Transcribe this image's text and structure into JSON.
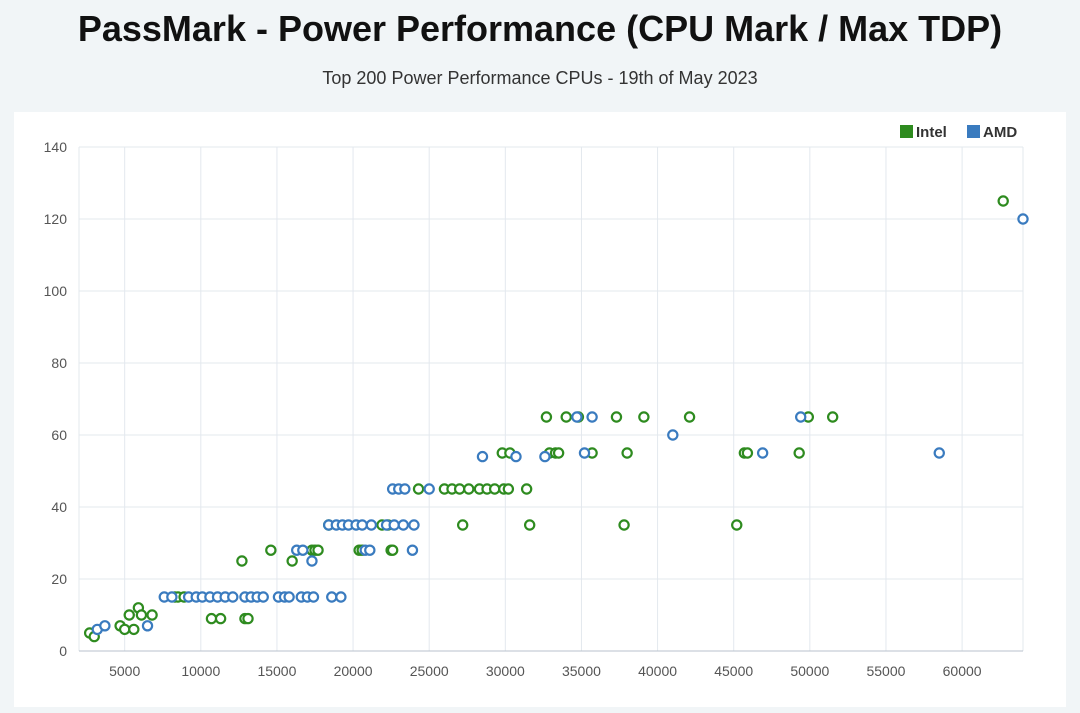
{
  "header": {
    "title": "PassMark - Power Performance (CPU Mark / Max TDP)",
    "subtitle": "Top 200 Power Performance CPUs - 19th of May 2023"
  },
  "colors": {
    "intel": "#2e8b1f",
    "amd": "#3a7bbf",
    "grid": "#e3e8ee"
  },
  "chart_data": {
    "type": "scatter",
    "title": "PassMark - Power Performance (CPU Mark / Max TDP)",
    "subtitle": "Top 200 Power Performance CPUs - 19th of May 2023",
    "xlabel": "",
    "ylabel": "",
    "xlim": [
      2000,
      64000
    ],
    "ylim": [
      0,
      140
    ],
    "x_ticks": [
      5000,
      10000,
      15000,
      20000,
      25000,
      30000,
      35000,
      40000,
      45000,
      50000,
      55000,
      60000
    ],
    "y_ticks": [
      0,
      20,
      40,
      60,
      80,
      100,
      120,
      140
    ],
    "grid": true,
    "legend": "top-right",
    "series": [
      {
        "name": "Intel",
        "color": "#2e8b1f",
        "points": [
          [
            2700,
            5
          ],
          [
            3000,
            4
          ],
          [
            4700,
            7
          ],
          [
            5000,
            6
          ],
          [
            5300,
            10
          ],
          [
            5600,
            6
          ],
          [
            5900,
            12
          ],
          [
            6100,
            10
          ],
          [
            6800,
            10
          ],
          [
            8300,
            15
          ],
          [
            8500,
            15
          ],
          [
            8900,
            15
          ],
          [
            10700,
            9
          ],
          [
            11300,
            9
          ],
          [
            12700,
            25
          ],
          [
            12900,
            9
          ],
          [
            13100,
            9
          ],
          [
            14600,
            28
          ],
          [
            16000,
            25
          ],
          [
            17300,
            28
          ],
          [
            17500,
            28
          ],
          [
            17700,
            28
          ],
          [
            18400,
            35
          ],
          [
            20400,
            28
          ],
          [
            20600,
            28
          ],
          [
            21900,
            35
          ],
          [
            22300,
            35
          ],
          [
            22500,
            28
          ],
          [
            22600,
            28
          ],
          [
            24300,
            45
          ],
          [
            26000,
            45
          ],
          [
            26500,
            45
          ],
          [
            27000,
            45
          ],
          [
            27200,
            35
          ],
          [
            27600,
            45
          ],
          [
            28300,
            45
          ],
          [
            28800,
            45
          ],
          [
            29300,
            45
          ],
          [
            29800,
            55
          ],
          [
            29900,
            45
          ],
          [
            30200,
            45
          ],
          [
            30300,
            55
          ],
          [
            31400,
            45
          ],
          [
            31600,
            35
          ],
          [
            32700,
            65
          ],
          [
            32900,
            55
          ],
          [
            33300,
            55
          ],
          [
            33500,
            55
          ],
          [
            34000,
            65
          ],
          [
            34800,
            65
          ],
          [
            35700,
            55
          ],
          [
            37300,
            65
          ],
          [
            37800,
            35
          ],
          [
            38000,
            55
          ],
          [
            39100,
            65
          ],
          [
            42100,
            65
          ],
          [
            45200,
            35
          ],
          [
            45700,
            55
          ],
          [
            45900,
            55
          ],
          [
            49300,
            55
          ],
          [
            49900,
            65
          ],
          [
            51500,
            65
          ],
          [
            62700,
            125
          ]
        ]
      },
      {
        "name": "AMD",
        "color": "#3a7bbf",
        "points": [
          [
            3200,
            6
          ],
          [
            3700,
            7
          ],
          [
            6500,
            7
          ],
          [
            7600,
            15
          ],
          [
            8100,
            15
          ],
          [
            9200,
            15
          ],
          [
            9700,
            15
          ],
          [
            10100,
            15
          ],
          [
            10600,
            15
          ],
          [
            11100,
            15
          ],
          [
            11600,
            15
          ],
          [
            12100,
            15
          ],
          [
            12900,
            15
          ],
          [
            13300,
            15
          ],
          [
            13700,
            15
          ],
          [
            14100,
            15
          ],
          [
            15100,
            15
          ],
          [
            15500,
            15
          ],
          [
            15800,
            15
          ],
          [
            16300,
            28
          ],
          [
            16600,
            15
          ],
          [
            16700,
            28
          ],
          [
            17000,
            15
          ],
          [
            17300,
            25
          ],
          [
            17400,
            15
          ],
          [
            18400,
            35
          ],
          [
            18600,
            15
          ],
          [
            18900,
            35
          ],
          [
            19200,
            15
          ],
          [
            19300,
            35
          ],
          [
            19700,
            35
          ],
          [
            20200,
            35
          ],
          [
            20600,
            35
          ],
          [
            20800,
            28
          ],
          [
            21100,
            28
          ],
          [
            21200,
            35
          ],
          [
            22200,
            35
          ],
          [
            22600,
            45
          ],
          [
            22700,
            35
          ],
          [
            23000,
            45
          ],
          [
            23300,
            35
          ],
          [
            23400,
            45
          ],
          [
            23900,
            28
          ],
          [
            24000,
            35
          ],
          [
            25000,
            45
          ],
          [
            28500,
            54
          ],
          [
            30700,
            54
          ],
          [
            32600,
            54
          ],
          [
            34700,
            65
          ],
          [
            35200,
            55
          ],
          [
            35700,
            65
          ],
          [
            41000,
            60
          ],
          [
            46900,
            55
          ],
          [
            49400,
            65
          ],
          [
            58500,
            55
          ],
          [
            64000,
            120
          ]
        ]
      }
    ]
  }
}
